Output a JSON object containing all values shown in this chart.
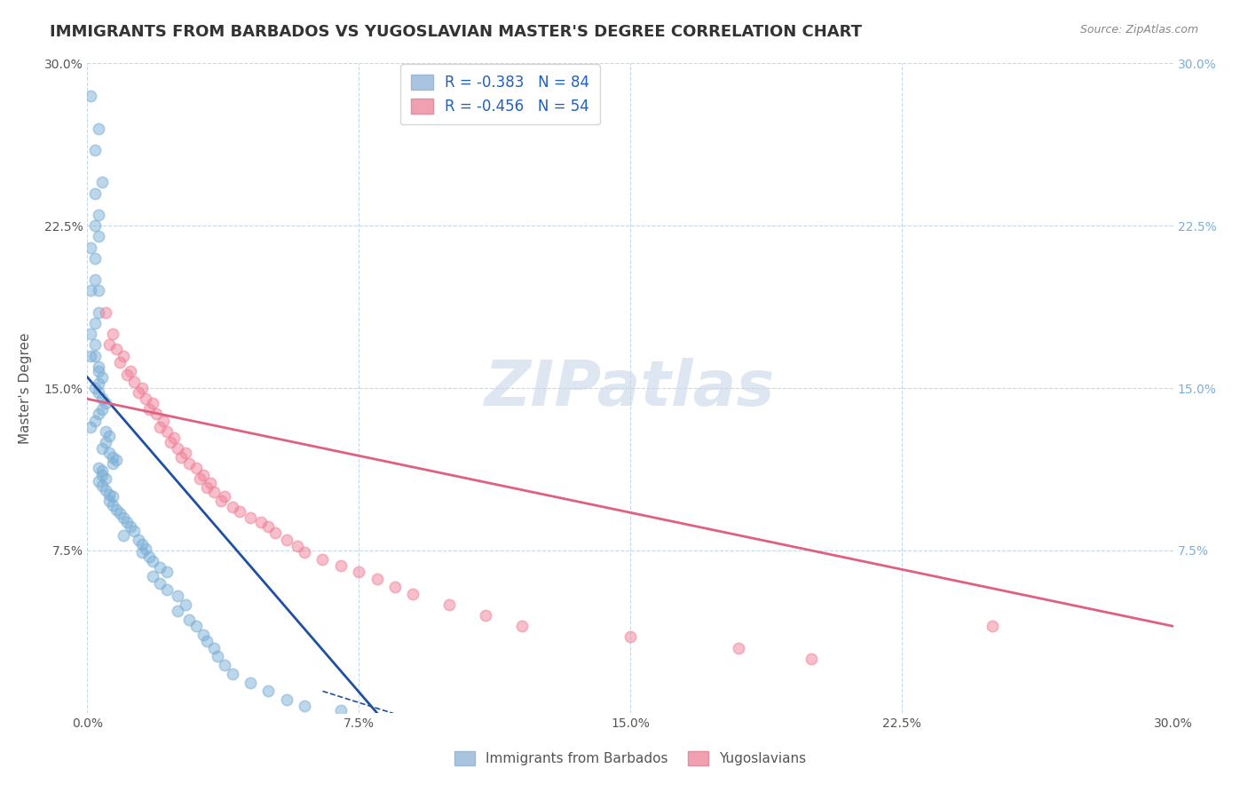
{
  "title": "IMMIGRANTS FROM BARBADOS VS YUGOSLAVIAN MASTER'S DEGREE CORRELATION CHART",
  "source": "Source: ZipAtlas.com",
  "xlabel_bottom": "",
  "ylabel": "Master's Degree",
  "xlim": [
    0.0,
    0.3
  ],
  "ylim": [
    0.0,
    0.3
  ],
  "xticks": [
    0.0,
    0.075,
    0.15,
    0.225,
    0.3
  ],
  "yticks": [
    0.0,
    0.075,
    0.15,
    0.225,
    0.3
  ],
  "xtick_labels": [
    "0.0%",
    "7.5%",
    "15.0%",
    "22.5%",
    "30.0%"
  ],
  "ytick_labels": [
    "",
    "7.5%",
    "15.0%",
    "22.5%",
    "30.0%"
  ],
  "right_ytick_labels": [
    "7.5%",
    "15.0%",
    "22.5%",
    "30.0%"
  ],
  "right_yticks": [
    0.075,
    0.15,
    0.225,
    0.3
  ],
  "legend_entries": [
    {
      "label": "R = -0.383   N = 84",
      "color": "#a8c4e0"
    },
    {
      "label": "R = -0.456   N = 54",
      "color": "#f0a0b0"
    }
  ],
  "watermark": "ZIPatlas",
  "blue_scatter_x": [
    0.001,
    0.003,
    0.002,
    0.003,
    0.002,
    0.004,
    0.002,
    0.003,
    0.001,
    0.002,
    0.002,
    0.001,
    0.003,
    0.003,
    0.002,
    0.001,
    0.002,
    0.001,
    0.002,
    0.003,
    0.003,
    0.004,
    0.003,
    0.002,
    0.003,
    0.004,
    0.005,
    0.004,
    0.003,
    0.002,
    0.001,
    0.005,
    0.006,
    0.005,
    0.004,
    0.006,
    0.007,
    0.008,
    0.007,
    0.003,
    0.004,
    0.004,
    0.005,
    0.003,
    0.004,
    0.005,
    0.006,
    0.007,
    0.006,
    0.007,
    0.008,
    0.009,
    0.01,
    0.011,
    0.012,
    0.013,
    0.01,
    0.014,
    0.015,
    0.016,
    0.015,
    0.017,
    0.018,
    0.02,
    0.022,
    0.018,
    0.02,
    0.022,
    0.025,
    0.027,
    0.025,
    0.028,
    0.03,
    0.032,
    0.033,
    0.035,
    0.036,
    0.038,
    0.04,
    0.045,
    0.05,
    0.055,
    0.06,
    0.07
  ],
  "blue_scatter_y": [
    0.285,
    0.27,
    0.26,
    0.23,
    0.24,
    0.245,
    0.225,
    0.22,
    0.215,
    0.21,
    0.2,
    0.195,
    0.195,
    0.185,
    0.18,
    0.175,
    0.17,
    0.165,
    0.165,
    0.16,
    0.158,
    0.155,
    0.152,
    0.15,
    0.148,
    0.145,
    0.143,
    0.14,
    0.138,
    0.135,
    0.132,
    0.13,
    0.128,
    0.125,
    0.122,
    0.12,
    0.118,
    0.117,
    0.115,
    0.113,
    0.112,
    0.11,
    0.108,
    0.107,
    0.105,
    0.103,
    0.101,
    0.1,
    0.098,
    0.096,
    0.094,
    0.092,
    0.09,
    0.088,
    0.086,
    0.084,
    0.082,
    0.08,
    0.078,
    0.076,
    0.074,
    0.072,
    0.07,
    0.067,
    0.065,
    0.063,
    0.06,
    0.057,
    0.054,
    0.05,
    0.047,
    0.043,
    0.04,
    0.036,
    0.033,
    0.03,
    0.026,
    0.022,
    0.018,
    0.014,
    0.01,
    0.006,
    0.003,
    0.001
  ],
  "pink_scatter_x": [
    0.005,
    0.007,
    0.006,
    0.008,
    0.01,
    0.009,
    0.012,
    0.011,
    0.013,
    0.015,
    0.014,
    0.016,
    0.018,
    0.017,
    0.019,
    0.021,
    0.02,
    0.022,
    0.024,
    0.023,
    0.025,
    0.027,
    0.026,
    0.028,
    0.03,
    0.032,
    0.031,
    0.034,
    0.033,
    0.035,
    0.038,
    0.037,
    0.04,
    0.042,
    0.045,
    0.048,
    0.05,
    0.052,
    0.055,
    0.058,
    0.06,
    0.065,
    0.07,
    0.075,
    0.08,
    0.085,
    0.09,
    0.1,
    0.11,
    0.12,
    0.15,
    0.18,
    0.2,
    0.25
  ],
  "pink_scatter_y": [
    0.185,
    0.175,
    0.17,
    0.168,
    0.165,
    0.162,
    0.158,
    0.156,
    0.153,
    0.15,
    0.148,
    0.145,
    0.143,
    0.14,
    0.138,
    0.135,
    0.132,
    0.13,
    0.127,
    0.125,
    0.122,
    0.12,
    0.118,
    0.115,
    0.113,
    0.11,
    0.108,
    0.106,
    0.104,
    0.102,
    0.1,
    0.098,
    0.095,
    0.093,
    0.09,
    0.088,
    0.086,
    0.083,
    0.08,
    0.077,
    0.074,
    0.071,
    0.068,
    0.065,
    0.062,
    0.058,
    0.055,
    0.05,
    0.045,
    0.04,
    0.035,
    0.03,
    0.025,
    0.04
  ],
  "blue_line_x": [
    0.0,
    0.08
  ],
  "blue_line_y": [
    0.155,
    0.0
  ],
  "pink_line_x": [
    0.0,
    0.3
  ],
  "pink_line_y": [
    0.145,
    0.04
  ],
  "blue_scatter_color": "#7aaed6",
  "pink_scatter_color": "#f08098",
  "blue_line_color": "#2050a0",
  "pink_line_color": "#e06080",
  "scatter_alpha": 0.5,
  "scatter_size": 80,
  "background_color": "#ffffff",
  "grid_color": "#c8d8e8",
  "title_fontsize": 13,
  "axis_label_fontsize": 11,
  "tick_fontsize": 10
}
